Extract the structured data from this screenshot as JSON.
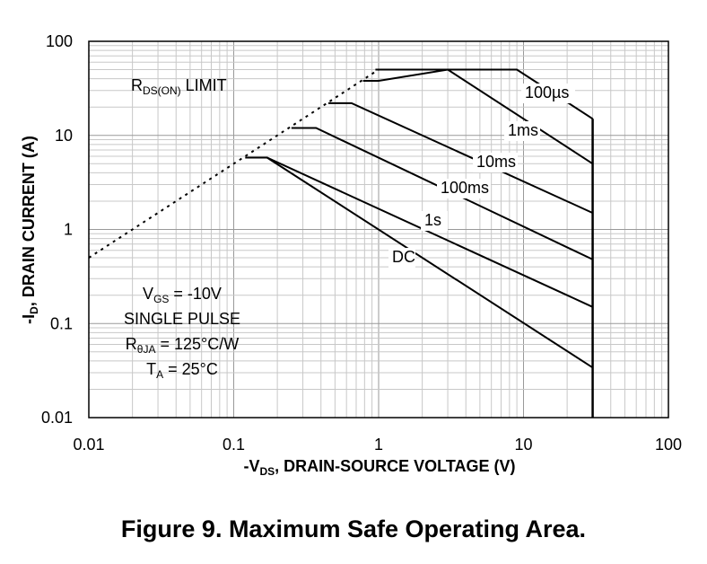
{
  "chart_data": {
    "type": "line",
    "title": "",
    "xscale": "log",
    "yscale": "log",
    "xlim": [
      0.01,
      100
    ],
    "ylim": [
      0.01,
      100
    ],
    "grid": true,
    "xlabel": {
      "prefix": "-V",
      "sub": "DS",
      "suffix": ", DRAIN-SOURCE VOLTAGE (V)"
    },
    "ylabel": {
      "prefix": "-I",
      "sub": "D",
      "suffix": ", DRAIN CURRENT (A)"
    },
    "xticks": [
      {
        "value": 0.01,
        "label": "0.01"
      },
      {
        "value": 0.1,
        "label": "0.1"
      },
      {
        "value": 1,
        "label": "1"
      },
      {
        "value": 10,
        "label": "10"
      },
      {
        "value": 100,
        "label": "100"
      }
    ],
    "yticks": [
      {
        "value": 0.01,
        "label": "0.01"
      },
      {
        "value": 0.1,
        "label": "0.1"
      },
      {
        "value": 1,
        "label": "1"
      },
      {
        "value": 10,
        "label": "10"
      },
      {
        "value": 100,
        "label": "100"
      }
    ],
    "rds_limit": {
      "name": "R_DS(ON) LIMIT",
      "style": "dotted",
      "x": [
        0.01,
        0.1,
        1
      ],
      "y": [
        0.5,
        5,
        50
      ]
    },
    "vds_max": 30,
    "series": [
      {
        "name": "100µs",
        "x": [
          0.95,
          9,
          30
        ],
        "y": [
          50,
          50,
          15
        ]
      },
      {
        "name": "1ms",
        "x": [
          0.78,
          1,
          3,
          30
        ],
        "y": [
          38,
          38,
          50,
          5
        ]
      },
      {
        "name": "10ms",
        "x": [
          0.45,
          0.65,
          30
        ],
        "y": [
          22,
          22,
          1.5
        ]
      },
      {
        "name": "100ms",
        "x": [
          0.25,
          0.37,
          30
        ],
        "y": [
          12,
          12,
          0.48
        ]
      },
      {
        "name": "1s",
        "x": [
          0.12,
          0.17,
          30
        ],
        "y": [
          5.8,
          5.8,
          0.15
        ]
      },
      {
        "name": "DC",
        "x": [
          0.17,
          30
        ],
        "y": [
          5.8,
          0.034
        ]
      }
    ],
    "annotations": {
      "rds_label": {
        "main": "R",
        "sub": "DS(ON)",
        "rest": " LIMIT"
      },
      "conditions": [
        {
          "main": "V",
          "sub": "GS",
          "rest": " = -10V"
        },
        {
          "main": "SINGLE PULSE",
          "sub": "",
          "rest": ""
        },
        {
          "main": "R",
          "sub": "θJA",
          "rest": " = 125°C/W"
        },
        {
          "main": "T",
          "sub": "A",
          "rest": " = 25°C"
        }
      ]
    }
  },
  "caption": "Figure 9. Maximum Safe Operating Area."
}
